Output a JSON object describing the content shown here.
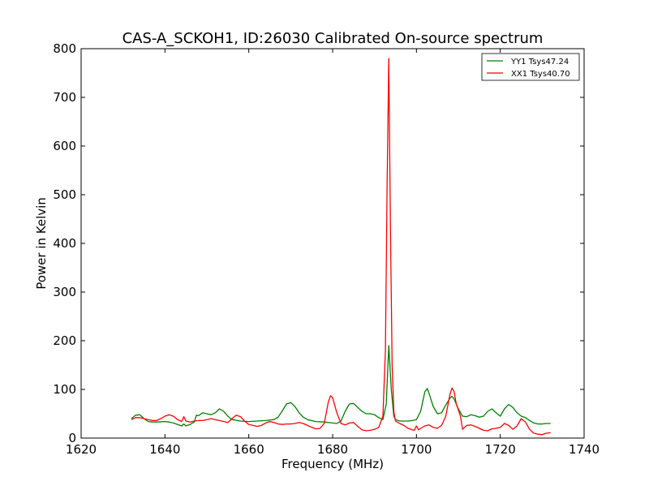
{
  "chart_data": {
    "type": "line",
    "title": "CAS-A_SCKOH1, ID:26030 Calibrated On-source spectrum",
    "xlabel": "Frequency (MHz)",
    "ylabel": "Power in Kelvin",
    "xlim": [
      1620,
      1740
    ],
    "ylim": [
      0,
      800
    ],
    "xticks": [
      1620,
      1640,
      1660,
      1680,
      1700,
      1720,
      1740
    ],
    "yticks": [
      0,
      100,
      200,
      300,
      400,
      500,
      600,
      700,
      800
    ],
    "grid": false,
    "legend_position": "top-right",
    "series": [
      {
        "name": "YY1 Tsys47.24",
        "color": "#008000",
        "points": [
          [
            1632,
            40
          ],
          [
            1633,
            47
          ],
          [
            1634,
            48
          ],
          [
            1635,
            40
          ],
          [
            1636,
            34
          ],
          [
            1637,
            33
          ],
          [
            1638,
            33
          ],
          [
            1640,
            34
          ],
          [
            1641,
            33
          ],
          [
            1642,
            31
          ],
          [
            1643,
            28
          ],
          [
            1644,
            25
          ],
          [
            1644.5,
            29
          ],
          [
            1645,
            25
          ],
          [
            1646,
            28
          ],
          [
            1647,
            33
          ],
          [
            1647.5,
            47
          ],
          [
            1648,
            46
          ],
          [
            1649,
            52
          ],
          [
            1650,
            50
          ],
          [
            1651,
            48
          ],
          [
            1652,
            52
          ],
          [
            1653,
            60
          ],
          [
            1654,
            55
          ],
          [
            1655,
            45
          ],
          [
            1656,
            38
          ],
          [
            1658,
            35
          ],
          [
            1660,
            34
          ],
          [
            1662,
            35
          ],
          [
            1664,
            36
          ],
          [
            1666,
            38
          ],
          [
            1667,
            43
          ],
          [
            1668,
            56
          ],
          [
            1669,
            70
          ],
          [
            1670,
            73
          ],
          [
            1671,
            65
          ],
          [
            1672,
            52
          ],
          [
            1673,
            43
          ],
          [
            1674,
            38
          ],
          [
            1676,
            34
          ],
          [
            1678,
            33
          ],
          [
            1680,
            31
          ],
          [
            1681,
            30
          ],
          [
            1682,
            35
          ],
          [
            1683,
            55
          ],
          [
            1684,
            70
          ],
          [
            1685,
            71
          ],
          [
            1686,
            63
          ],
          [
            1687,
            55
          ],
          [
            1688,
            50
          ],
          [
            1689,
            50
          ],
          [
            1690,
            48
          ],
          [
            1691,
            42
          ],
          [
            1692,
            38
          ],
          [
            1692.8,
            70
          ],
          [
            1693.4,
            190
          ],
          [
            1694,
            100
          ],
          [
            1694.6,
            45
          ],
          [
            1695,
            38
          ],
          [
            1696,
            35
          ],
          [
            1698,
            35
          ],
          [
            1699,
            36
          ],
          [
            1700,
            38
          ],
          [
            1701,
            55
          ],
          [
            1702,
            95
          ],
          [
            1702.6,
            102
          ],
          [
            1703,
            92
          ],
          [
            1704,
            65
          ],
          [
            1705,
            50
          ],
          [
            1706,
            52
          ],
          [
            1707,
            68
          ],
          [
            1708,
            82
          ],
          [
            1708.5,
            86
          ],
          [
            1709,
            80
          ],
          [
            1710,
            60
          ],
          [
            1711,
            45
          ],
          [
            1712,
            44
          ],
          [
            1713,
            48
          ],
          [
            1714,
            46
          ],
          [
            1715,
            43
          ],
          [
            1716,
            45
          ],
          [
            1717,
            55
          ],
          [
            1718,
            60
          ],
          [
            1719,
            52
          ],
          [
            1720,
            45
          ],
          [
            1721,
            60
          ],
          [
            1722,
            69
          ],
          [
            1723,
            63
          ],
          [
            1724,
            52
          ],
          [
            1725,
            45
          ],
          [
            1726,
            42
          ],
          [
            1727,
            36
          ],
          [
            1728,
            31
          ],
          [
            1729,
            29
          ],
          [
            1730,
            29
          ],
          [
            1731,
            30
          ],
          [
            1732,
            30
          ]
        ]
      },
      {
        "name": "XX1 Tsys40.70",
        "color": "#ff0000",
        "points": [
          [
            1632,
            38
          ],
          [
            1633,
            42
          ],
          [
            1634,
            42
          ],
          [
            1635,
            40
          ],
          [
            1636,
            38
          ],
          [
            1637,
            36
          ],
          [
            1638,
            36
          ],
          [
            1639,
            40
          ],
          [
            1640,
            45
          ],
          [
            1641,
            48
          ],
          [
            1642,
            45
          ],
          [
            1643,
            38
          ],
          [
            1644,
            34
          ],
          [
            1644.5,
            44
          ],
          [
            1645,
            35
          ],
          [
            1646,
            33
          ],
          [
            1647,
            35
          ],
          [
            1648,
            36
          ],
          [
            1649,
            36
          ],
          [
            1650,
            38
          ],
          [
            1651,
            40
          ],
          [
            1652,
            38
          ],
          [
            1653,
            36
          ],
          [
            1654,
            34
          ],
          [
            1655,
            32
          ],
          [
            1656,
            40
          ],
          [
            1657,
            47
          ],
          [
            1658,
            44
          ],
          [
            1659,
            35
          ],
          [
            1660,
            28
          ],
          [
            1661,
            26
          ],
          [
            1662,
            24
          ],
          [
            1663,
            26
          ],
          [
            1664,
            31
          ],
          [
            1665,
            34
          ],
          [
            1666,
            32
          ],
          [
            1667,
            29
          ],
          [
            1668,
            28
          ],
          [
            1669,
            29
          ],
          [
            1670,
            29
          ],
          [
            1671,
            30
          ],
          [
            1672,
            32
          ],
          [
            1673,
            30
          ],
          [
            1674,
            26
          ],
          [
            1675,
            22
          ],
          [
            1676,
            19
          ],
          [
            1677,
            20
          ],
          [
            1678,
            30
          ],
          [
            1679,
            75
          ],
          [
            1679.5,
            87
          ],
          [
            1680,
            83
          ],
          [
            1681,
            52
          ],
          [
            1682,
            30
          ],
          [
            1683,
            27
          ],
          [
            1684,
            31
          ],
          [
            1685,
            32
          ],
          [
            1686,
            24
          ],
          [
            1687,
            17
          ],
          [
            1688,
            15
          ],
          [
            1689,
            16
          ],
          [
            1690,
            18
          ],
          [
            1691,
            22
          ],
          [
            1692,
            45
          ],
          [
            1692.6,
            180
          ],
          [
            1693,
            520
          ],
          [
            1693.4,
            780
          ],
          [
            1693.8,
            430
          ],
          [
            1694.2,
            150
          ],
          [
            1694.6,
            55
          ],
          [
            1695,
            35
          ],
          [
            1696,
            30
          ],
          [
            1697,
            26
          ],
          [
            1698,
            20
          ],
          [
            1699,
            17
          ],
          [
            1699.5,
            16
          ],
          [
            1700,
            25
          ],
          [
            1700.5,
            17
          ],
          [
            1701,
            20
          ],
          [
            1702,
            25
          ],
          [
            1703,
            27
          ],
          [
            1704,
            22
          ],
          [
            1705,
            20
          ],
          [
            1706,
            26
          ],
          [
            1707,
            45
          ],
          [
            1708,
            90
          ],
          [
            1708.5,
            103
          ],
          [
            1709,
            95
          ],
          [
            1709.5,
            70
          ],
          [
            1710,
            58
          ],
          [
            1710.5,
            45
          ],
          [
            1711,
            18
          ],
          [
            1712,
            26
          ],
          [
            1713,
            27
          ],
          [
            1714,
            24
          ],
          [
            1715,
            20
          ],
          [
            1716,
            16
          ],
          [
            1717,
            15
          ],
          [
            1718,
            19
          ],
          [
            1719,
            20
          ],
          [
            1720,
            22
          ],
          [
            1721,
            30
          ],
          [
            1722,
            26
          ],
          [
            1723,
            18
          ],
          [
            1724,
            25
          ],
          [
            1725,
            40
          ],
          [
            1726,
            33
          ],
          [
            1727,
            18
          ],
          [
            1728,
            10
          ],
          [
            1729,
            8
          ],
          [
            1730,
            7
          ],
          [
            1731,
            10
          ],
          [
            1732,
            11
          ]
        ]
      }
    ]
  }
}
